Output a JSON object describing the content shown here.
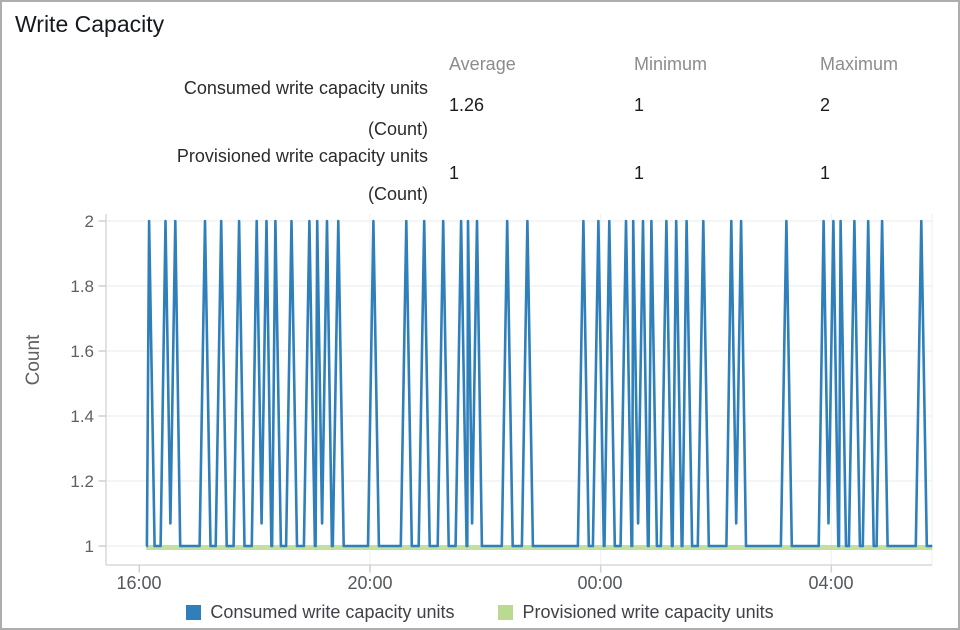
{
  "title": "Write Capacity",
  "stats": {
    "headers": [
      "Average",
      "Minimum",
      "Maximum"
    ],
    "rows": [
      {
        "label": "Consumed write capacity units",
        "unit": "(Count)",
        "average": "1.26",
        "minimum": "1",
        "maximum": "2"
      },
      {
        "label": "Provisioned write capacity units",
        "unit": "(Count)",
        "average": "1",
        "minimum": "1",
        "maximum": "1"
      }
    ]
  },
  "chart_data": {
    "type": "line",
    "ylabel": "Count",
    "ylim": [
      1,
      2
    ],
    "y_tick_labels": [
      "2",
      "1.8",
      "1.6",
      "1.4",
      "1.2",
      "1"
    ],
    "x_unit": "hours after 16:00",
    "x_ticks": [
      {
        "label": "16:00",
        "t": 0
      },
      {
        "label": "20:00",
        "t": 4
      },
      {
        "label": "00:00",
        "t": 8
      },
      {
        "label": "04:00",
        "t": 12
      }
    ],
    "grid": true,
    "legend_position": "bottom",
    "series": [
      {
        "name": "Consumed write capacity units",
        "color": "#2e7fba",
        "t_start": 0.12,
        "t_end": 13.75,
        "baseline_value": 1,
        "peak_value": 2,
        "spikes": [
          [
            0.17,
            1
          ],
          [
            0.54,
            2
          ],
          [
            1.14,
            1
          ],
          [
            1.42,
            1
          ],
          [
            1.73,
            1
          ],
          [
            2.12,
            2
          ],
          [
            2.36,
            1
          ],
          [
            2.64,
            1
          ],
          [
            2.95,
            1
          ],
          [
            3.17,
            2
          ],
          [
            3.45,
            1
          ],
          [
            4.06,
            1
          ],
          [
            4.63,
            1
          ],
          [
            4.94,
            1
          ],
          [
            5.27,
            1
          ],
          [
            5.58,
            1
          ],
          [
            5.77,
            2
          ],
          [
            6.38,
            1
          ],
          [
            6.73,
            1
          ],
          [
            7.7,
            1
          ],
          [
            7.96,
            1
          ],
          [
            8.15,
            1
          ],
          [
            8.44,
            1
          ],
          [
            8.65,
            2
          ],
          [
            8.88,
            1
          ],
          [
            9.14,
            1
          ],
          [
            9.31,
            1
          ],
          [
            9.49,
            1
          ],
          [
            9.78,
            1
          ],
          [
            10.35,
            2
          ],
          [
            11.22,
            1
          ],
          [
            11.95,
            2
          ],
          [
            12.16,
            1
          ],
          [
            12.4,
            1
          ],
          [
            12.64,
            1
          ],
          [
            12.88,
            1
          ],
          [
            13.56,
            1
          ]
        ]
      },
      {
        "name": "Provisioned write capacity units",
        "color": "#b9da90",
        "t_start": 0.12,
        "t_end": 13.75,
        "constant_value": 1
      }
    ]
  },
  "colors": {
    "consumed_blue": "#2e7fba",
    "provisioned_green": "#b9da90",
    "provisioned_line": "#c3e09e",
    "grid": "#ebebeb",
    "axis": "#d8d8d8",
    "header_gray": "#8c8c8c"
  }
}
